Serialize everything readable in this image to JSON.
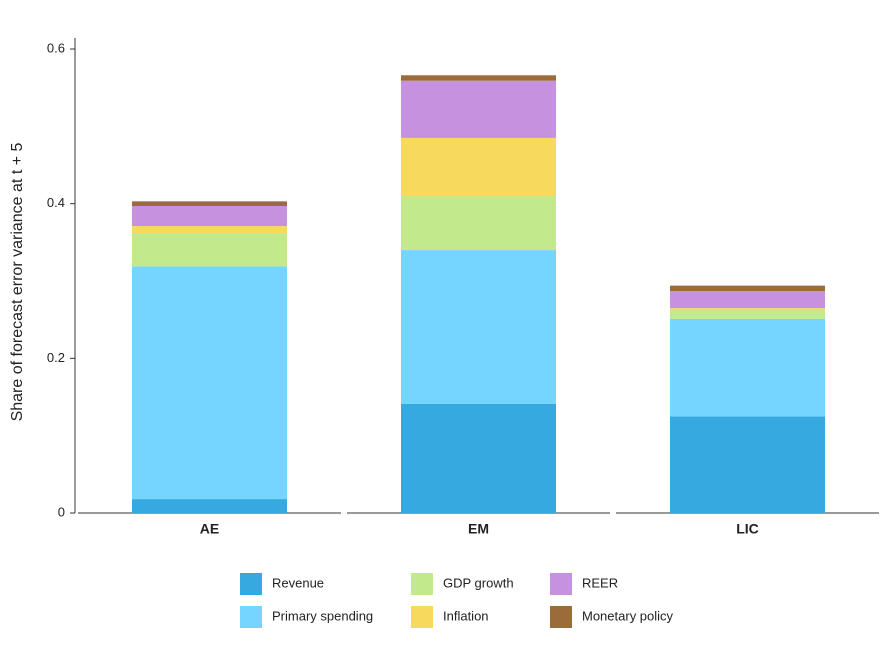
{
  "chart_data": {
    "type": "stacked_bar",
    "y_label": "Share of forecast error variance at t + 5",
    "categories": [
      "AE",
      "EM",
      "LIC"
    ],
    "series": [
      {
        "name": "Revenue",
        "color": "#36a9e1",
        "values": [
          0.018,
          0.141,
          0.125
        ]
      },
      {
        "name": "Primary spending",
        "color": "#75d5ff",
        "values": [
          0.301,
          0.199,
          0.126
        ]
      },
      {
        "name": "GDP growth",
        "color": "#c2e98a",
        "values": [
          0.043,
          0.07,
          0.012
        ]
      },
      {
        "name": "Inflation",
        "color": "#f7d95b",
        "values": [
          0.009,
          0.075,
          0.002
        ]
      },
      {
        "name": "REER",
        "color": "#c692e0",
        "values": [
          0.026,
          0.074,
          0.022
        ]
      },
      {
        "name": "Monetary policy",
        "color": "#9c6b3a",
        "values": [
          0.006,
          0.007,
          0.007
        ]
      }
    ],
    "ylim": [
      0,
      0.6
    ],
    "yticks": [
      0,
      0.2,
      0.4,
      0.6
    ]
  }
}
